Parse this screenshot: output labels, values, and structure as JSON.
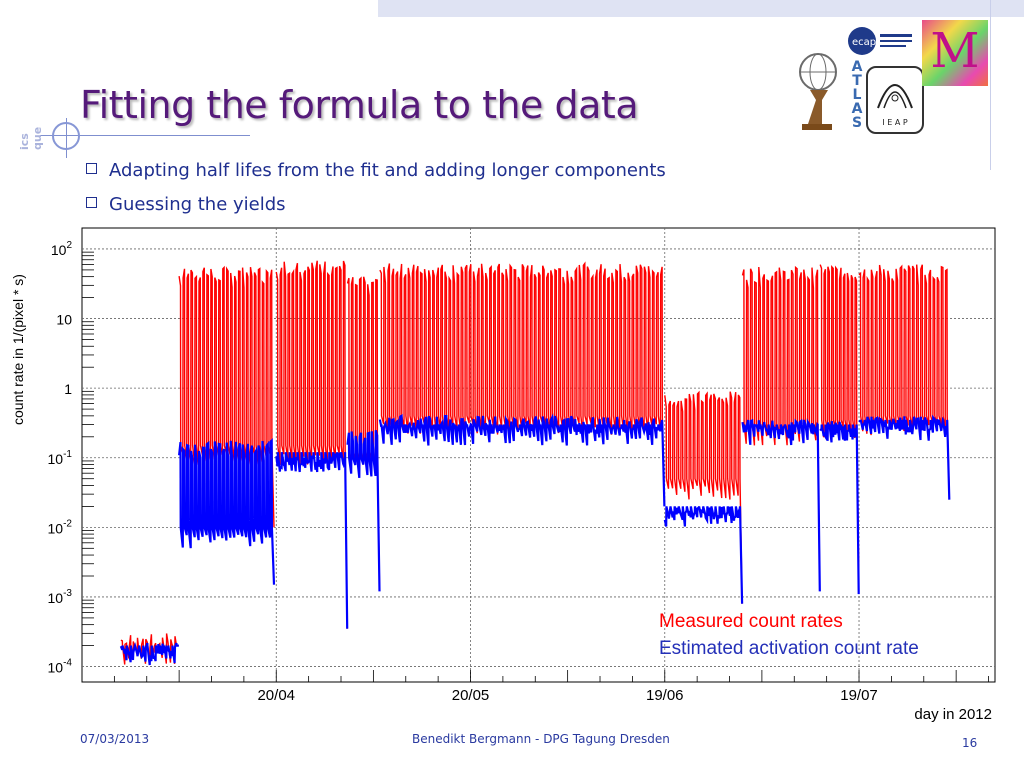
{
  "slide": {
    "title": "Fitting the formula to the data",
    "bullets": [
      "Adapting half lifes from the fit and adding longer components",
      "Guessing the yields"
    ],
    "side_fragment": "ics\nque",
    "footer_date": "07/03/2013",
    "footer_author": "Benedikt Bergmann - DPG Tagung Dresden",
    "page_number": "16"
  },
  "logos": {
    "atlas_letters": [
      "A",
      "T",
      "L",
      "A",
      "S"
    ],
    "ieap_text": "I E A P",
    "ecap_text": "ecap",
    "m_text": "M"
  },
  "colors": {
    "title": "#551a7a",
    "bullet_text": "#1f2f8f",
    "measured": "#ff0000",
    "activation": "#0000ff"
  },
  "chart_data": {
    "type": "line",
    "ylabel": "count rate in 1/(pixel * s)",
    "xlabel": "day in 2012",
    "yscale": "log",
    "ylim": [
      6e-05,
      200
    ],
    "ytick_labels": [
      {
        "base": "10",
        "exp": "2"
      },
      {
        "base": "10",
        "exp": ""
      },
      {
        "base": "1",
        "exp": ""
      },
      {
        "base": "10",
        "exp": "-1"
      },
      {
        "base": "10",
        "exp": "-2"
      },
      {
        "base": "10",
        "exp": "-3"
      },
      {
        "base": "10",
        "exp": "-4"
      }
    ],
    "ytick_values": [
      100,
      10,
      1,
      0.1,
      0.01,
      0.001,
      0.0001
    ],
    "xtick_labels": [
      "20/04",
      "20/05",
      "19/06",
      "19/07"
    ],
    "xtick_days": [
      0,
      30,
      60,
      90
    ],
    "xlim_days": [
      -30,
      111
    ],
    "grid": true,
    "legend_placement": "bottom-right",
    "series": [
      {
        "name": "Measured count rates",
        "color": "#ff0000",
        "segments": [
          {
            "start": -24,
            "end": -15,
            "baseline": 0.0002,
            "peak": 0.0003,
            "decay_to": 0.0002
          },
          {
            "start": -15,
            "end": -0.3,
            "baseline": 0.15,
            "peak": 55,
            "decay_to": 0.01
          },
          {
            "start": 0,
            "end": 11,
            "baseline": 0.15,
            "peak": 70,
            "decay_to": 0.00035
          },
          {
            "start": 11,
            "end": 16,
            "baseline": 0.12,
            "peak": 40,
            "decay_to": 0.0015
          },
          {
            "start": 16,
            "end": 60,
            "baseline": 0.4,
            "peak": 62,
            "decay_to": 0.025
          },
          {
            "start": 60,
            "end": 72,
            "baseline": 0.05,
            "peak": 0.9,
            "decay_to": 0.0008
          },
          {
            "start": 72,
            "end": 84,
            "baseline": 0.3,
            "peak": 55,
            "decay_to": 0.0015
          },
          {
            "start": 84,
            "end": 90,
            "baseline": 0.35,
            "peak": 60,
            "decay_to": 0.0025
          },
          {
            "start": 90,
            "end": 104,
            "baseline": 0.4,
            "peak": 60,
            "decay_to": 0.03
          }
        ]
      },
      {
        "name": "Estimated activation count rate",
        "color": "#0000ff",
        "segments": [
          {
            "start": -24,
            "end": -15,
            "baseline": 0.0002,
            "peak": 0.00022,
            "decay_to": 0.0002
          },
          {
            "start": -15,
            "end": -0.3,
            "baseline": 0.01,
            "peak": 0.18,
            "decay_to": 0.0015
          },
          {
            "start": 0,
            "end": 11,
            "baseline": 0.12,
            "peak": 0.12,
            "decay_to": 0.00035
          },
          {
            "start": 11,
            "end": 16,
            "baseline": 0.1,
            "peak": 0.25,
            "decay_to": 0.0012
          },
          {
            "start": 16,
            "end": 60,
            "baseline": 0.3,
            "peak": 0.4,
            "decay_to": 0.02
          },
          {
            "start": 60,
            "end": 72,
            "baseline": 0.02,
            "peak": 0.02,
            "decay_to": 0.0008
          },
          {
            "start": 72,
            "end": 84,
            "baseline": 0.3,
            "peak": 0.35,
            "decay_to": 0.0012
          },
          {
            "start": 84,
            "end": 90,
            "baseline": 0.3,
            "peak": 0.35,
            "decay_to": 0.0011
          },
          {
            "start": 90,
            "end": 104,
            "baseline": 0.35,
            "peak": 0.4,
            "decay_to": 0.025
          }
        ]
      }
    ]
  }
}
